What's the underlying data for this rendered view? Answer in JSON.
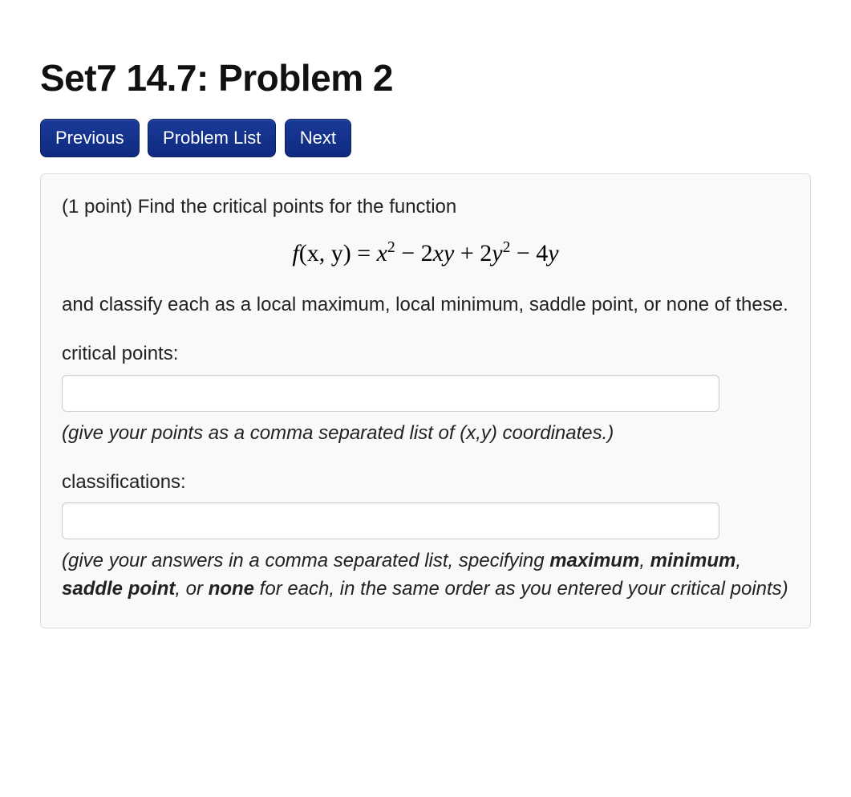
{
  "title": "Set7 14.7: Problem 2",
  "nav": {
    "previous": "Previous",
    "problem_list": "Problem List",
    "next": "Next"
  },
  "problem": {
    "points_prefix": "(1 point) ",
    "intro_text": "Find the critical points for the function",
    "formula": {
      "lhs_func": "f",
      "lhs_args": "(x, y)",
      "equals": " = ",
      "term1_base": "x",
      "term1_exp": "2",
      "minus1": " − 2",
      "term2": "xy",
      "plus1": " + 2",
      "term3_base": "y",
      "term3_exp": "2",
      "minus2": " − 4",
      "term4": "y"
    },
    "after_formula": "and classify each as a local maximum, local minimum, saddle point, or none of these.",
    "critical_points_label": "critical points:",
    "critical_points_value": "",
    "critical_points_hint": "(give your points as a comma separated list of (x,y) coordinates.)",
    "classifications_label": "classifications:",
    "classifications_value": "",
    "class_hint_pre": "(give your answers in a comma separated list, specifying ",
    "class_hint_b1": "maximum",
    "class_hint_sep1": ", ",
    "class_hint_b2": "minimum",
    "class_hint_sep2": ", ",
    "class_hint_b3": "saddle point",
    "class_hint_sep3": ", or ",
    "class_hint_b4": "none",
    "class_hint_post": " for each, in the same order as you entered your critical points)"
  },
  "colors": {
    "button_bg_top": "#1a3a99",
    "button_bg_bottom": "#0f2a7f",
    "button_border": "#0b1f63",
    "panel_bg": "#f9f9f9",
    "panel_border": "#dddddd",
    "input_border": "#cccccc",
    "text": "#222222"
  }
}
